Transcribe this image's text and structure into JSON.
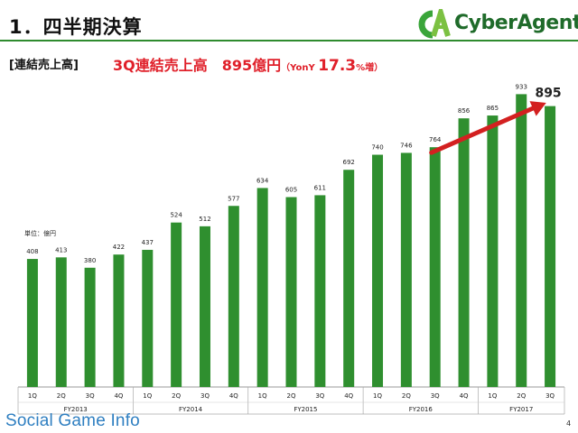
{
  "header": {
    "title": "1．四半期決算",
    "brand": "CyberAgent"
  },
  "section_label": "[連結売上高]",
  "headline": {
    "main": "3Q連結売上高　895億円",
    "yony_open": "（YonY ",
    "pct": "17.3",
    "pct_suffix": "%増）"
  },
  "unit_label": "単位：億円",
  "watermark": "Social Game Info",
  "page_number": "4",
  "colors": {
    "bar": "#2f8f2f",
    "arrow": "#d32020",
    "accent": "#e0202a",
    "rule": "#2e8b2e"
  },
  "chart_data": {
    "type": "bar",
    "title": "",
    "xlabel": "",
    "ylabel": "",
    "categories": [
      "1Q",
      "2Q",
      "3Q",
      "4Q",
      "1Q",
      "2Q",
      "3Q",
      "4Q",
      "1Q",
      "2Q",
      "3Q",
      "4Q",
      "1Q",
      "2Q",
      "3Q",
      "4Q",
      "1Q",
      "2Q",
      "3Q"
    ],
    "groups": [
      {
        "label": "FY2013",
        "count": 4
      },
      {
        "label": "FY2014",
        "count": 4
      },
      {
        "label": "FY2015",
        "count": 4
      },
      {
        "label": "FY2016",
        "count": 4
      },
      {
        "label": "FY2017",
        "count": 3
      }
    ],
    "values": [
      408,
      413,
      380,
      422,
      437,
      524,
      512,
      577,
      634,
      605,
      611,
      692,
      740,
      746,
      764,
      856,
      865,
      933,
      895
    ],
    "highlight_label": "895",
    "ylim": [
      0,
      960
    ],
    "grid": false,
    "legend": "none"
  }
}
